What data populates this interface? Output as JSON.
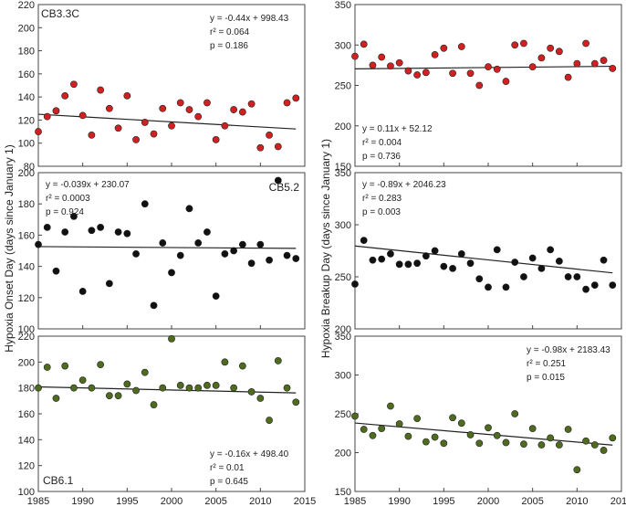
{
  "chart_data": [
    {
      "type": "scatter",
      "column": "onset",
      "station": "CB3.3C",
      "color": "#d02020",
      "xlim": [
        1985,
        2015
      ],
      "ylim": [
        80,
        220
      ],
      "yticks": [
        80,
        100,
        120,
        140,
        160,
        180,
        200,
        220
      ],
      "equation": "y = -0.44x + 998.43",
      "r2": "r² = 0.064",
      "p": "p = 0.186",
      "stats_pos": "top-right",
      "station_pos": "top-left",
      "trend": {
        "slope": -0.44,
        "intercept": 998.43
      },
      "x": [
        1985,
        1986,
        1987,
        1988,
        1989,
        1990,
        1991,
        1992,
        1993,
        1994,
        1995,
        1996,
        1997,
        1998,
        1999,
        2000,
        2001,
        2002,
        2003,
        2004,
        2005,
        2006,
        2007,
        2008,
        2009,
        2010,
        2011,
        2012,
        2013,
        2014
      ],
      "y": [
        110,
        123,
        128,
        141,
        151,
        124,
        107,
        146,
        130,
        113,
        141,
        103,
        118,
        108,
        130,
        115,
        135,
        129,
        123,
        135,
        103,
        115,
        129,
        127,
        134,
        96,
        107,
        97,
        135,
        139
      ]
    },
    {
      "type": "scatter",
      "column": "breakup",
      "station": "CB3.3C",
      "color": "#d02020",
      "xlim": [
        1985,
        2015
      ],
      "ylim": [
        150,
        350
      ],
      "yticks": [
        150,
        200,
        250,
        300,
        350
      ],
      "equation": "y = 0.11x + 52.12",
      "r2": "r² = 0.004",
      "p": "p = 0.736",
      "stats_pos": "bottom-left",
      "trend": {
        "slope": 0.11,
        "intercept": 52.12
      },
      "x": [
        1985,
        1986,
        1987,
        1988,
        1989,
        1990,
        1991,
        1992,
        1993,
        1994,
        1995,
        1996,
        1997,
        1998,
        1999,
        2000,
        2001,
        2002,
        2003,
        2004,
        2005,
        2006,
        2007,
        2008,
        2009,
        2010,
        2011,
        2012,
        2013,
        2014
      ],
      "y": [
        286,
        301,
        275,
        285,
        274,
        278,
        268,
        263,
        266,
        288,
        296,
        265,
        298,
        265,
        250,
        273,
        270,
        255,
        300,
        302,
        273,
        284,
        296,
        292,
        260,
        277,
        302,
        277,
        281,
        271
      ]
    },
    {
      "type": "scatter",
      "column": "onset",
      "station": "CB5.2",
      "color": "#111111",
      "xlim": [
        1985,
        2015
      ],
      "ylim": [
        100,
        200
      ],
      "yticks": [
        100,
        120,
        140,
        160,
        180,
        200
      ],
      "equation": "y = -0.039x + 230.07",
      "r2": "r² = 0.0003",
      "p": "p = 0.924",
      "stats_pos": "top-left",
      "station_pos": "top-right",
      "trend": {
        "slope": -0.039,
        "intercept": 230.07
      },
      "x": [
        1985,
        1986,
        1987,
        1988,
        1989,
        1990,
        1991,
        1992,
        1993,
        1994,
        1995,
        1996,
        1997,
        1998,
        1999,
        2000,
        2001,
        2002,
        2003,
        2004,
        2005,
        2006,
        2007,
        2008,
        2009,
        2010,
        2011,
        2012,
        2013,
        2014
      ],
      "y": [
        154,
        165,
        137,
        162,
        172,
        124,
        163,
        165,
        129,
        162,
        161,
        148,
        180,
        115,
        155,
        136,
        147,
        177,
        155,
        162,
        121,
        148,
        150,
        154,
        142,
        154,
        144,
        195,
        147,
        145
      ]
    },
    {
      "type": "scatter",
      "column": "breakup",
      "station": "CB5.2",
      "color": "#111111",
      "xlim": [
        1985,
        2015
      ],
      "ylim": [
        200,
        350
      ],
      "yticks": [
        200,
        250,
        300,
        350
      ],
      "equation": "y = -0.89x + 2046.23",
      "r2": "r² = 0.283",
      "p": "p = 0.003",
      "stats_pos": "top-left",
      "trend": {
        "slope": -0.89,
        "intercept": 2046.23
      },
      "x": [
        1985,
        1986,
        1987,
        1988,
        1989,
        1990,
        1991,
        1992,
        1993,
        1994,
        1995,
        1996,
        1997,
        1998,
        1999,
        2000,
        2001,
        2002,
        2003,
        2004,
        2005,
        2006,
        2007,
        2008,
        2009,
        2010,
        2011,
        2012,
        2013,
        2014
      ],
      "y": [
        243,
        285,
        266,
        267,
        272,
        262,
        262,
        263,
        270,
        275,
        260,
        258,
        272,
        263,
        248,
        240,
        276,
        240,
        264,
        250,
        268,
        258,
        276,
        265,
        250,
        250,
        238,
        242,
        266,
        242
      ]
    },
    {
      "type": "scatter",
      "column": "onset",
      "station": "CB6.1",
      "color": "#4e6b1e",
      "xlim": [
        1985,
        2015
      ],
      "ylim": [
        100,
        220
      ],
      "yticks": [
        100,
        120,
        140,
        160,
        180,
        200,
        220
      ],
      "equation": "y = -0.16x + 498.40",
      "r2": "r² = 0.01",
      "p": "p = 0.645",
      "stats_pos": "bottom-right",
      "station_pos": "bottom-left",
      "trend": {
        "slope": -0.16,
        "intercept": 498.4
      },
      "x": [
        1985,
        1986,
        1987,
        1988,
        1989,
        1990,
        1991,
        1992,
        1993,
        1994,
        1995,
        1996,
        1997,
        1998,
        1999,
        2000,
        2001,
        2002,
        2003,
        2004,
        2005,
        2006,
        2007,
        2008,
        2009,
        2010,
        2011,
        2012,
        2013,
        2014
      ],
      "y": [
        180,
        196,
        172,
        197,
        180,
        186,
        180,
        198,
        174,
        174,
        183,
        178,
        192,
        167,
        180,
        218,
        182,
        180,
        180,
        182,
        182,
        200,
        180,
        197,
        177,
        172,
        155,
        201,
        180,
        169
      ]
    },
    {
      "type": "scatter",
      "column": "breakup",
      "station": "CB6.1",
      "color": "#4e6b1e",
      "xlim": [
        1985,
        2015
      ],
      "ylim": [
        150,
        350
      ],
      "yticks": [
        150,
        200,
        250,
        300,
        350
      ],
      "equation": "y = -0.98x + 2183.43",
      "r2": "r² = 0.251",
      "p": "p = 0.015",
      "stats_pos": "top-right",
      "trend": {
        "slope": -0.98,
        "intercept": 2183.43
      },
      "x": [
        1985,
        1986,
        1987,
        1988,
        1989,
        1990,
        1991,
        1992,
        1993,
        1994,
        1995,
        1996,
        1997,
        1998,
        1999,
        2000,
        2001,
        2002,
        2003,
        2004,
        2005,
        2006,
        2007,
        2008,
        2009,
        2010,
        2011,
        2012,
        2013,
        2014
      ],
      "y": [
        247,
        230,
        222,
        231,
        260,
        237,
        221,
        244,
        214,
        220,
        212,
        245,
        238,
        223,
        212,
        232,
        222,
        213,
        250,
        211,
        231,
        210,
        219,
        210,
        230,
        178,
        215,
        210,
        203,
        219
      ]
    }
  ],
  "xticks": [
    1985,
    1990,
    1995,
    2000,
    2005,
    2010,
    2015
  ],
  "ylabel_left": "Hypoxia Onset Day (days since January 1)",
  "ylabel_right": "Hypoxia Breakup Day (days since January 1)"
}
